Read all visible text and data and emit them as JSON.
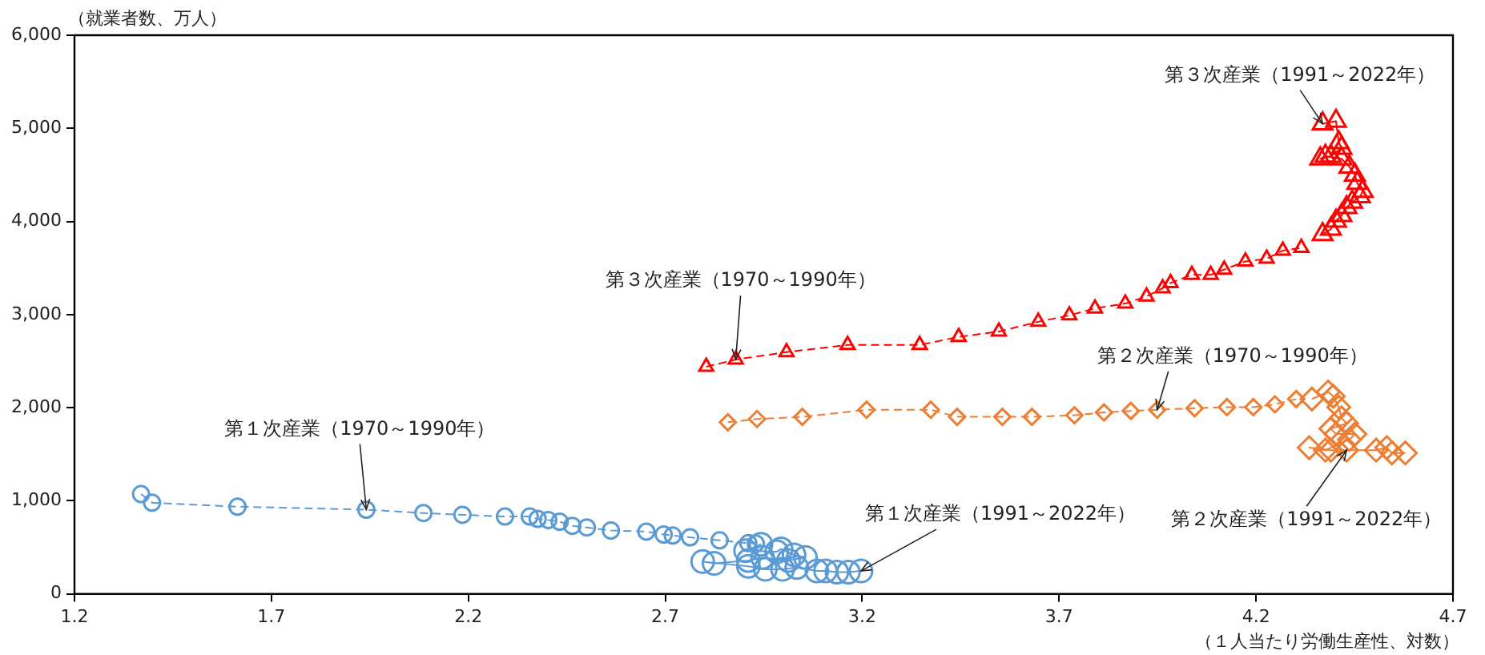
{
  "chart_data": {
    "type": "scatter",
    "xlabel": "（１人当たり労働生産性、対数）",
    "ylabel": "（就業者数、万人）",
    "xlim": [
      1.2,
      4.7
    ],
    "xticks": [
      1.2,
      1.7,
      2.2,
      2.7,
      3.2,
      3.7,
      4.2,
      4.7
    ],
    "ylim": [
      0,
      6000
    ],
    "yticks": [
      {
        "value": 0,
        "label": "0"
      },
      {
        "value": 1000,
        "label": "1,000"
      },
      {
        "value": 2000,
        "label": "2,000"
      },
      {
        "value": 3000,
        "label": "3,000"
      },
      {
        "value": 4000,
        "label": "4,000"
      },
      {
        "value": 5000,
        "label": "5,000"
      },
      {
        "value": 6000,
        "label": "6,000"
      }
    ],
    "grid": false,
    "legend": false,
    "series": [
      {
        "type": "line",
        "color": "#5b9bd5",
        "marker": "circle",
        "line_style": "dashed",
        "x": [
          1.369,
          1.397,
          1.614,
          1.941,
          2.086,
          2.185,
          2.293,
          2.356,
          2.376,
          2.403,
          2.432,
          2.464,
          2.501,
          2.562,
          2.652,
          2.696,
          2.719,
          2.763,
          2.838,
          2.911,
          2.93
        ],
        "values": [
          1071,
          979,
          936,
          904,
          868,
          849,
          830,
          830,
          805,
          793,
          774,
          730,
          713,
          680,
          668,
          637,
          626,
          607,
          574,
          544,
          540
        ]
      },
      {
        "type": "line",
        "color": "#5b9bd5",
        "marker": "circle",
        "line_style": "solid",
        "x": [
          2.943,
          2.904,
          2.983,
          2.994,
          3.027,
          3.056,
          3.013,
          2.947,
          2.911,
          2.824,
          2.795,
          2.911,
          2.954,
          2.998,
          3.034,
          3.085,
          3.107,
          3.136,
          3.165,
          3.197
        ],
        "values": [
          532,
          463,
          452,
          482,
          419,
          390,
          358,
          390,
          358,
          327,
          346,
          296,
          264,
          264,
          283,
          245,
          245,
          233,
          233,
          245
        ]
      },
      {
        "type": "line",
        "color": "#ed7d31",
        "marker": "diamond",
        "line_style": "dashed",
        "x": [
          2.859,
          2.933,
          3.048,
          3.211,
          3.374,
          3.441,
          3.556,
          3.631,
          3.739,
          3.814,
          3.882,
          3.949,
          4.044,
          4.126,
          4.193,
          4.248,
          4.302
        ],
        "values": [
          1843,
          1878,
          1901,
          1977,
          1977,
          1901,
          1901,
          1901,
          1918,
          1948,
          1965,
          1977,
          1994,
          2005,
          2005,
          2035,
          2092
        ]
      },
      {
        "type": "line",
        "color": "#ed7d31",
        "marker": "diamond",
        "line_style": "solid",
        "x": [
          4.342,
          4.383,
          4.396,
          4.41,
          4.417,
          4.43,
          4.39,
          4.403,
          4.451,
          4.437,
          4.376,
          4.335,
          4.39,
          4.43,
          4.505,
          4.532,
          4.545,
          4.579
        ],
        "values": [
          2092,
          2168,
          2122,
          2005,
          1890,
          1831,
          1774,
          1716,
          1716,
          1657,
          1543,
          1570,
          1543,
          1543,
          1543,
          1570,
          1513,
          1513
        ]
      },
      {
        "type": "line",
        "color": "#ff0000",
        "marker": "triangle",
        "line_style": "dashed",
        "x": [
          2.804,
          2.879,
          3.008,
          3.163,
          3.346,
          3.445,
          3.547,
          3.647,
          3.726,
          3.791,
          3.868,
          3.922,
          3.963,
          3.983,
          4.037,
          4.085,
          4.119,
          4.173,
          4.227,
          4.268,
          4.315
        ],
        "values": [
          2440,
          2516,
          2597,
          2673,
          2673,
          2760,
          2817,
          2922,
          2991,
          3066,
          3118,
          3195,
          3282,
          3339,
          3426,
          3426,
          3483,
          3570,
          3600,
          3687,
          3716
        ]
      },
      {
        "type": "line",
        "color": "#ff0000",
        "marker": "triangle",
        "line_style": "solid",
        "x": [
          4.369,
          4.39,
          4.403,
          4.417,
          4.43,
          4.444,
          4.464,
          4.471,
          4.457,
          4.451,
          4.437,
          4.417,
          4.376,
          4.363,
          4.39,
          4.417,
          4.41,
          4.403,
          4.369
        ],
        "values": [
          3861,
          3918,
          4005,
          4064,
          4151,
          4209,
          4266,
          4325,
          4412,
          4499,
          4586,
          4673,
          4701,
          4673,
          4701,
          4788,
          4847,
          5078,
          5049
        ]
      }
    ],
    "annotations": [
      {
        "text": "第１次産業（1970～1990年）",
        "x": 1.941,
        "y": 904
      },
      {
        "text": "第１次産業（1991～2022年）",
        "x": 3.197,
        "y": 245
      },
      {
        "text": "第２次産業（1970～1990年）",
        "x": 3.949,
        "y": 1977
      },
      {
        "text": "第２次産業（1991～2022年）",
        "x": 4.43,
        "y": 1543
      },
      {
        "text": "第３次産業（1970～1990年）",
        "x": 2.879,
        "y": 2516
      },
      {
        "text": "第３次産業（1991～2022年）",
        "x": 4.369,
        "y": 5049
      }
    ]
  }
}
